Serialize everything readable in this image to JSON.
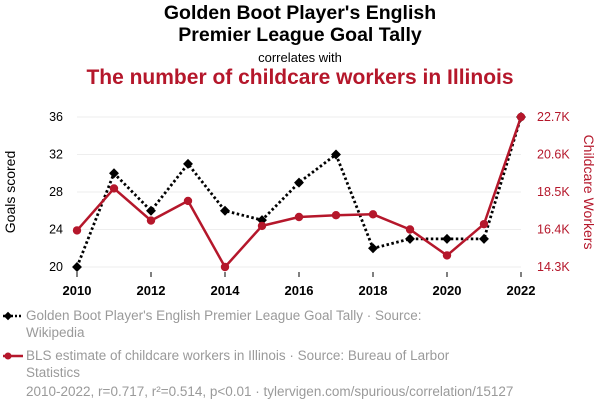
{
  "header": {
    "title_line1": "Golden Boot Player's English",
    "title_line2": "Premier League Goal Tally",
    "correlates": "correlates with",
    "title2": "The number of childcare workers in Illinois"
  },
  "chart_data": {
    "type": "line",
    "x": [
      2010,
      2011,
      2012,
      2013,
      2014,
      2015,
      2016,
      2017,
      2018,
      2019,
      2020,
      2021,
      2022
    ],
    "xticks": [
      "2010",
      "2012",
      "2014",
      "2016",
      "2018",
      "2020",
      "2022"
    ],
    "xlim": [
      2010,
      2022
    ],
    "series": [
      {
        "name": "Golden Boot Player's English Premier League Goal Tally",
        "axis": "left",
        "color": "#000000",
        "values": [
          20,
          30,
          26,
          31,
          26,
          25,
          29,
          32,
          22,
          23,
          23,
          23,
          36
        ]
      },
      {
        "name": "BLS estimate of childcare workers in Illinois",
        "axis": "right",
        "color": "#b5172b",
        "values": [
          16350,
          18700,
          16900,
          18000,
          14300,
          16600,
          17100,
          17200,
          17250,
          16400,
          14950,
          16700,
          22700
        ]
      }
    ],
    "yleft": {
      "label": "Goals scored",
      "ticks": [
        "20",
        "24",
        "28",
        "32",
        "36"
      ],
      "tick_values": [
        20,
        24,
        28,
        32,
        36
      ],
      "ylim": [
        20,
        36
      ]
    },
    "yright": {
      "label": "Childcare Workers",
      "ticks": [
        "14.3K",
        "16.4K",
        "18.5K",
        "20.6K",
        "22.7K"
      ],
      "tick_values": [
        14300,
        16400,
        18500,
        20600,
        22700
      ],
      "ylim": [
        14300,
        22700
      ]
    },
    "grid": true
  },
  "legend": {
    "item1": "Golden Boot Player's English Premier League Goal Tally · Source: Wikipedia",
    "item2": "BLS estimate of childcare workers in Illinois · Source: Bureau of Larbor Statistics"
  },
  "footer": "2010-2022, r=0.717, r²=0.514, p<0.01 · tylervigen.com/spurious/correlation/15127"
}
